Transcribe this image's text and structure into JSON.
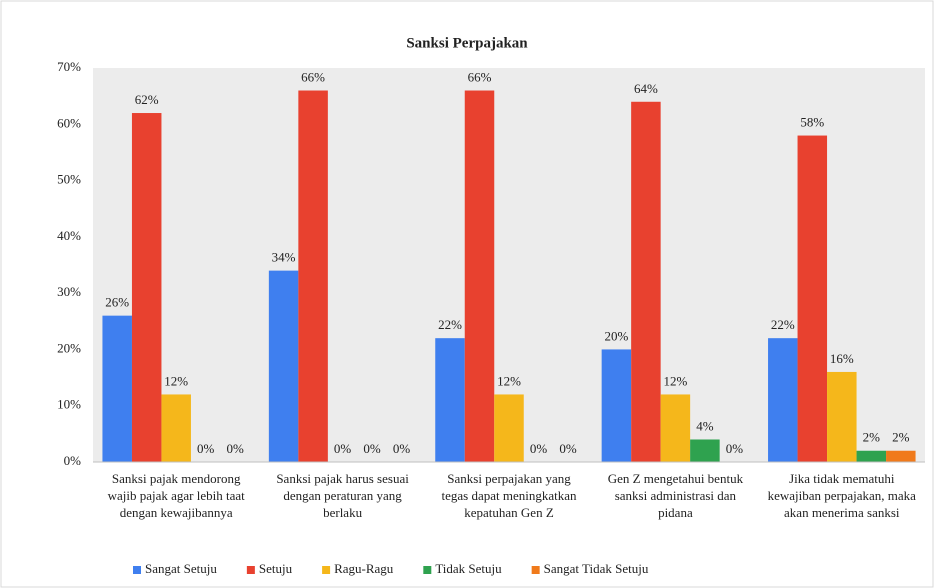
{
  "chart_data": {
    "type": "bar",
    "title": "Sanksi Perpajakan",
    "categories": [
      "Sanksi pajak mendorong wajib pajak agar lebih taat dengan kewajibannya",
      "Sanksi pajak harus sesuai dengan peraturan yang berlaku",
      "Sanksi perpajakan yang tegas dapat meningkatkan kepatuhan Gen Z",
      "Gen Z mengetahui bentuk sanksi administrasi dan pidana",
      "Jika tidak mematuhi kewajiban perpajakan, maka akan menerima sanksi"
    ],
    "series": [
      {
        "name": "Sangat Setuju",
        "color": "#3f7fef",
        "values": [
          26,
          34,
          22,
          20,
          22
        ],
        "value_labels": [
          "26%",
          "34%",
          "22%",
          "20%",
          "22%"
        ]
      },
      {
        "name": "Setuju",
        "color": "#e8412f",
        "values": [
          62,
          66,
          66,
          64,
          58
        ],
        "value_labels": [
          "62%",
          "66%",
          "66%",
          "64%",
          "58%"
        ]
      },
      {
        "name": "Ragu-Ragu",
        "color": "#f5b71b",
        "values": [
          12,
          0,
          12,
          12,
          16
        ],
        "value_labels": [
          "12%",
          "0%",
          "12%",
          "12%",
          "16%"
        ]
      },
      {
        "name": "Tidak Setuju",
        "color": "#2fa24f",
        "values": [
          0,
          0,
          0,
          4,
          2
        ],
        "value_labels": [
          "0%",
          "0%",
          "0%",
          "4%",
          "2%"
        ]
      },
      {
        "name": "Sangat Tidak Setuju",
        "color": "#f07a1b",
        "values": [
          0,
          0,
          0,
          0,
          2
        ],
        "value_labels": [
          "0%",
          "0%",
          "0%",
          "0%",
          "2%"
        ]
      }
    ],
    "ylim": [
      0,
      70
    ],
    "yticks": [
      {
        "value": 0,
        "label": "0%"
      },
      {
        "value": 10,
        "label": "10%"
      },
      {
        "value": 20,
        "label": "20%"
      },
      {
        "value": 30,
        "label": "30%"
      },
      {
        "value": 40,
        "label": "40%"
      },
      {
        "value": 50,
        "label": "50%"
      },
      {
        "value": 60,
        "label": "60%"
      },
      {
        "value": 70,
        "label": "70%"
      }
    ],
    "grid": false,
    "legend": "bottom"
  }
}
